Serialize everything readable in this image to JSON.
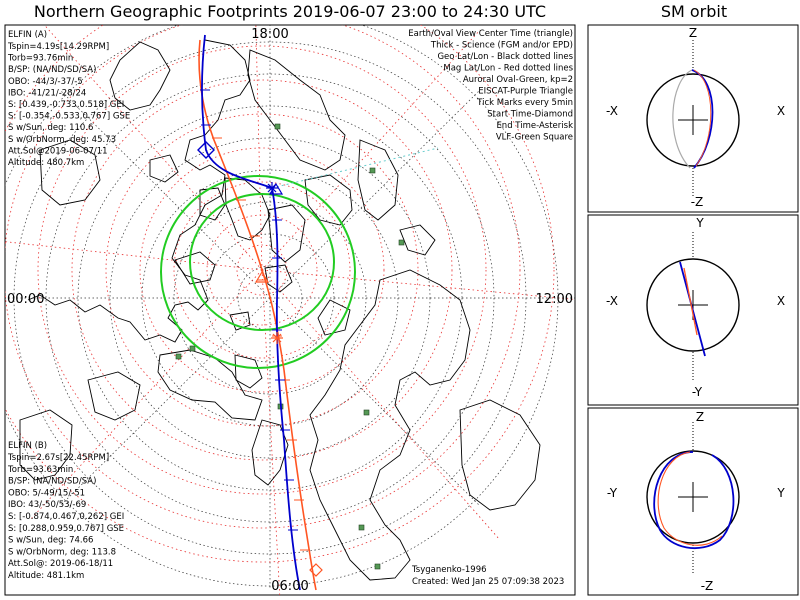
{
  "title": "Northern Geographic Footprints 2019-06-07 23:00 to 24:30 UTC",
  "sm_title": "SM orbit",
  "elfin_a": {
    "name": "ELFIN (A)",
    "lines": [
      "Tspin=4.19s[14.29RPM]",
      "Torb=93.76min",
      "B/SP: (NA/ND/SD/SA)",
      "OBO: -44/3/-37/-5",
      "IBO: -41/21/-28/24",
      "S: [0.439,-0.733,0.518] GEI",
      "S: [-0.354,-0.533,0.767] GSE",
      "S w/Sun, deg: 110.6",
      "S w/OrbNorm, deg: 45.73",
      "Att.Sol@2019-06-07/11",
      "Altitude: 480.7km"
    ],
    "color": "#0000cc"
  },
  "elfin_b": {
    "name": "ELFIN (B)",
    "lines": [
      "Tspin=2.67s[22.45RPM]",
      "Torb=93.63min",
      "B/SP: (NA/ND/SD/SA)",
      "OBO: 5/-49/15/-51",
      "IBO: 43/-50/53/-69",
      "S: [-0.874,0.467,0.262] GEI",
      "S: [0.288,0.959,0.767] GSE",
      "S w/Sun, deg: 74.66",
      "S w/OrbNorm, deg: 113.8",
      "Att.Sol@: 2019-06-18/11",
      "Altitude: 481.1km"
    ],
    "color": "#ff5522"
  },
  "legend": [
    {
      "text": "Earth/Oval View Center Time (triangle)",
      "color": "#000000"
    },
    {
      "text": "Thick - Science (FGM and/or EPD)",
      "color": "#000000"
    },
    {
      "text": "Geo Lat/Lon - Black dotted lines",
      "color": "#000000"
    },
    {
      "text": "Mag Lat/Lon - Red dotted lines",
      "color": "#ee0000"
    },
    {
      "text": "Auroral Oval-Green, kp=2",
      "color": "#22cc22"
    },
    {
      "text": "EISCAT-Purple Triangle",
      "color": "#cc44cc"
    },
    {
      "text": "Tick Marks every 5min",
      "color": "#000000"
    },
    {
      "text": "Start Time-Diamond",
      "color": "#000000"
    },
    {
      "text": "End Time-Asterisk",
      "color": "#000000"
    },
    {
      "text": "VLF-Green Square",
      "color": "#66cc66"
    }
  ],
  "hour_labels": {
    "top": "18:00",
    "left": "00:00",
    "right": "12:00",
    "bottom": "06:00"
  },
  "footer": {
    "model": "Tsyganenko-1996",
    "created": "Created: Wed Jan 25 07:09:38 2023"
  },
  "sm_panels": [
    {
      "top": "Z",
      "bottom": "-Z",
      "left": "-X",
      "right": "X"
    },
    {
      "top": "Y",
      "bottom": "-Y",
      "left": "-X",
      "right": "X"
    },
    {
      "top": "Z",
      "bottom": "-Z",
      "left": "-Y",
      "right": "Y"
    }
  ]
}
